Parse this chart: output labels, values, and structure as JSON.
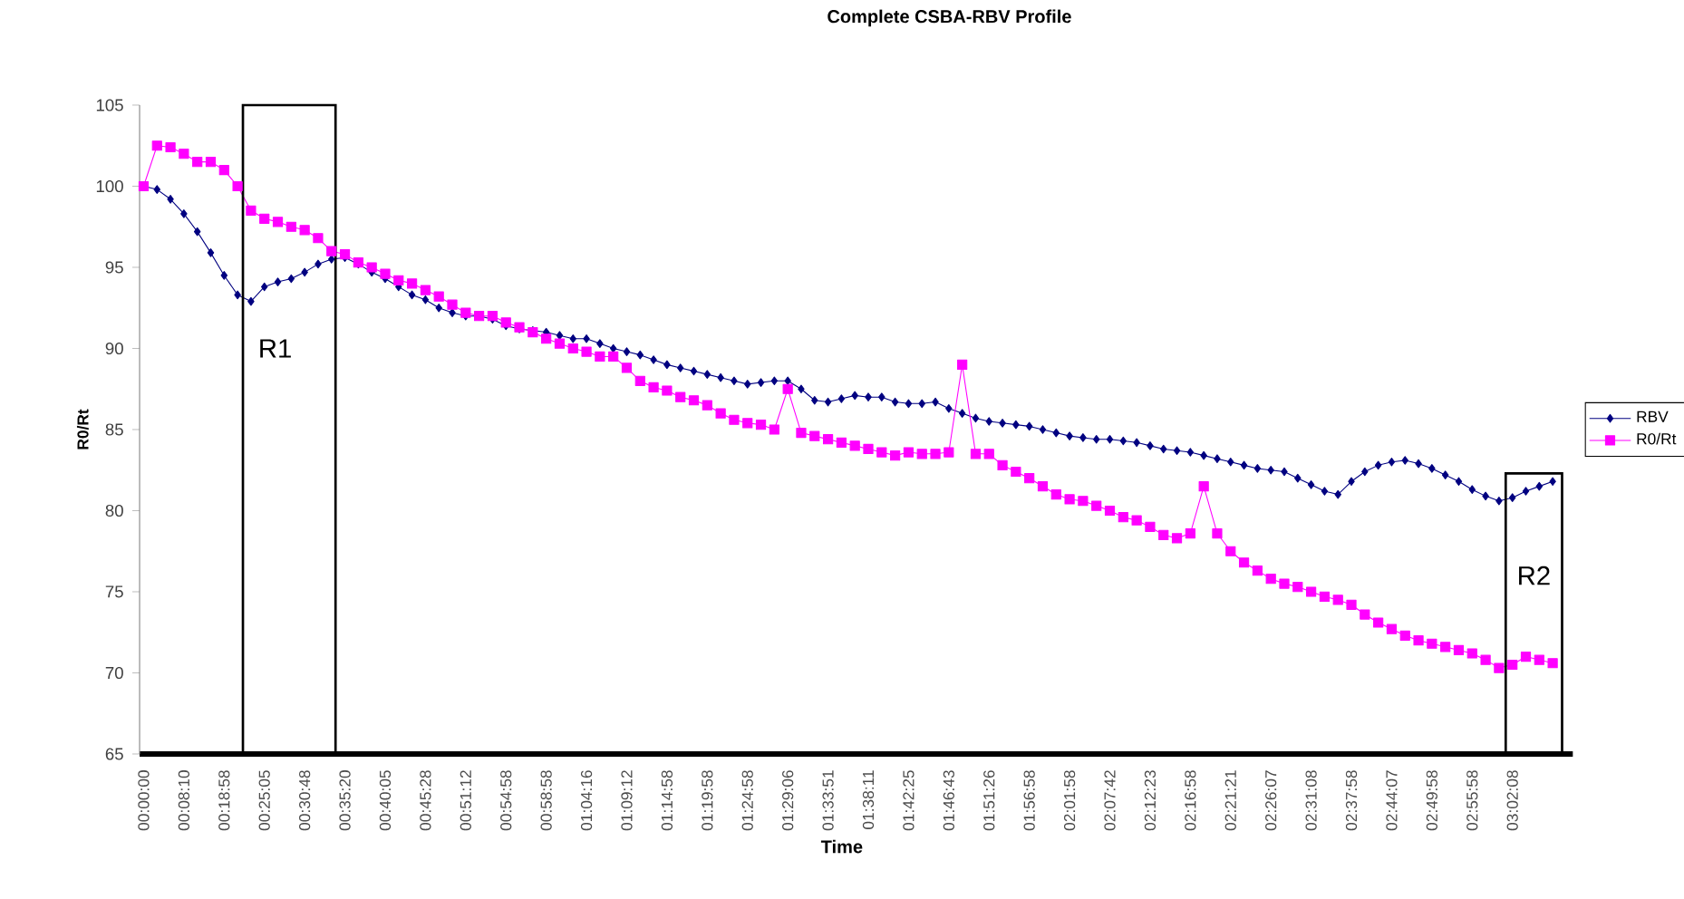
{
  "chart_data": {
    "type": "line",
    "title": "Complete CSBA-RBV Profile",
    "xlabel": "Time",
    "ylabel": "R0/Rt",
    "categories": [
      "00:00:00",
      null,
      null,
      "00:08:10",
      null,
      null,
      "00:18:58",
      null,
      null,
      "00:25:05",
      null,
      null,
      "00:30:48",
      null,
      null,
      "00:35:20",
      null,
      null,
      "00:40:05",
      null,
      null,
      "00:45:28",
      null,
      null,
      "00:51:12",
      null,
      null,
      "00:54:58",
      null,
      null,
      "00:58:58",
      null,
      null,
      "01:04:16",
      null,
      null,
      "01:09:12",
      null,
      null,
      "01:14:58",
      null,
      null,
      "01:19:58",
      null,
      null,
      "01:24:58",
      null,
      null,
      "01:29:06",
      null,
      null,
      "01:33:51",
      null,
      null,
      "01:38:11",
      null,
      null,
      "01:42:25",
      null,
      null,
      "01:46:43",
      null,
      null,
      "01:51:26",
      null,
      null,
      "01:56:58",
      null,
      null,
      "02:01:58",
      null,
      null,
      "02:07:42",
      null,
      null,
      "02:12:23",
      null,
      null,
      "02:16:58",
      null,
      null,
      "02:21:21",
      null,
      null,
      "02:26:07",
      null,
      null,
      "02:31:08",
      null,
      null,
      "02:37:58",
      null,
      null,
      "02:44:07",
      null,
      null,
      "02:49:58",
      null,
      null,
      "02:55:58",
      null,
      null,
      "03:02:08",
      null,
      null,
      null
    ],
    "series": [
      {
        "name": "RBV",
        "color": "#000080",
        "marker": "diamond",
        "values": [
          100,
          99.8,
          99.2,
          98.3,
          97.2,
          95.9,
          94.5,
          93.3,
          92.9,
          93.8,
          94.1,
          94.3,
          94.7,
          95.2,
          95.5,
          95.6,
          95.2,
          94.7,
          94.3,
          93.8,
          93.3,
          93,
          92.5,
          92.2,
          92,
          92,
          91.8,
          91.4,
          91.2,
          91.1,
          91,
          90.8,
          90.6,
          90.6,
          90.3,
          90,
          89.8,
          89.6,
          89.3,
          89,
          88.8,
          88.6,
          88.4,
          88.2,
          88,
          87.8,
          87.9,
          88,
          88,
          87.5,
          86.8,
          86.7,
          86.9,
          87.1,
          87,
          87,
          86.7,
          86.6,
          86.6,
          86.7,
          86.3,
          86,
          85.7,
          85.5,
          85.4,
          85.3,
          85.2,
          85,
          84.8,
          84.6,
          84.5,
          84.4,
          84.4,
          84.3,
          84.2,
          84,
          83.8,
          83.7,
          83.6,
          83.4,
          83.2,
          83,
          82.8,
          82.6,
          82.5,
          82.4,
          82,
          81.6,
          81.2,
          81,
          81.8,
          82.4,
          82.8,
          83,
          83.1,
          82.9,
          82.6,
          82.2,
          81.8,
          81.3,
          80.9,
          80.6,
          80.8,
          81.2,
          81.5,
          81.8
        ]
      },
      {
        "name": "R0/Rt",
        "color": "#ff00ff",
        "marker": "square",
        "values": [
          100,
          102.5,
          102.4,
          102,
          101.5,
          101.5,
          101,
          100,
          98.5,
          98,
          97.8,
          97.5,
          97.3,
          96.8,
          96,
          95.8,
          95.3,
          95,
          94.6,
          94.2,
          94,
          93.6,
          93.2,
          92.7,
          92.2,
          92,
          92,
          91.6,
          91.3,
          91,
          90.6,
          90.3,
          90,
          89.8,
          89.5,
          89.5,
          88.8,
          88,
          87.6,
          87.4,
          87,
          86.8,
          86.5,
          86,
          85.6,
          85.4,
          85.3,
          85,
          87.5,
          84.8,
          84.6,
          84.4,
          84.2,
          84,
          83.8,
          83.6,
          83.4,
          83.6,
          83.5,
          83.5,
          83.6,
          89,
          83.5,
          83.5,
          82.8,
          82.4,
          82,
          81.5,
          81,
          80.7,
          80.6,
          80.3,
          80,
          79.6,
          79.4,
          79,
          78.5,
          78.3,
          78.6,
          81.5,
          78.6,
          77.5,
          76.8,
          76.3,
          75.8,
          75.5,
          75.3,
          75,
          74.7,
          74.5,
          74.2,
          73.6,
          73.1,
          72.7,
          72.3,
          72,
          71.8,
          71.6,
          71.4,
          71.2,
          70.8,
          70.3,
          70.5,
          71,
          70.8,
          70.6
        ]
      }
    ],
    "ylim": [
      65,
      105
    ],
    "yticks": [
      65,
      70,
      75,
      80,
      85,
      90,
      95,
      100,
      105
    ],
    "grid": false,
    "legend": "right",
    "line_style": "solid",
    "annotations": [
      "R1",
      "R2"
    ]
  }
}
